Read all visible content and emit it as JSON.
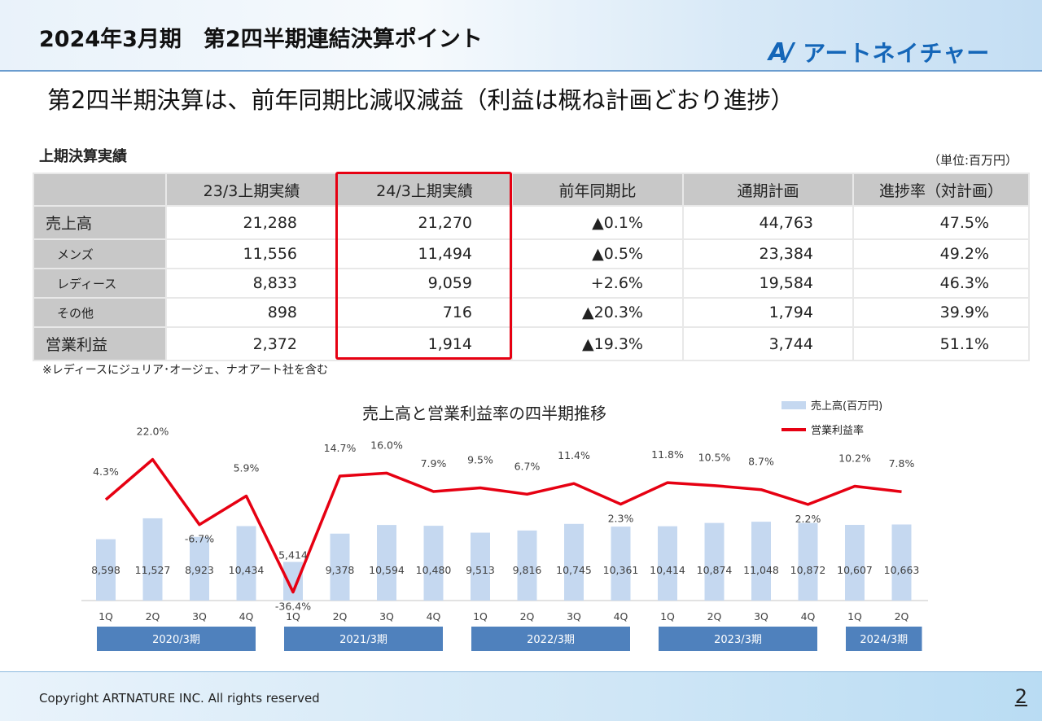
{
  "header": {
    "title": "2024年3月期　第2四半期連結決算ポイント",
    "logo_mark": "AN",
    "logo_text": "アートネイチャー"
  },
  "subtitle": "第2四半期決算は、前年同期比減収減益（利益は概ね計画どおり進捗）",
  "table": {
    "title": "上期決算実績",
    "unit": "（単位:百万円）",
    "headers": [
      "",
      "23/3上期実績",
      "24/3上期実績",
      "前年同期比",
      "通期計画",
      "進捗率（対計画）"
    ],
    "rows": [
      {
        "label": "売上高",
        "values": [
          "21,288",
          "21,270",
          "▲0.1%",
          "44,763",
          "47.5%"
        ]
      },
      {
        "label": "メンズ",
        "values": [
          "11,556",
          "11,494",
          "▲0.5%",
          "23,384",
          "49.2%"
        ]
      },
      {
        "label": "レディース",
        "values": [
          "8,833",
          "9,059",
          "+2.6%",
          "19,584",
          "46.3%"
        ]
      },
      {
        "label": "その他",
        "values": [
          "898",
          "716",
          "▲20.3%",
          "1,794",
          "39.9%"
        ]
      },
      {
        "label": "営業利益",
        "values": [
          "2,372",
          "1,914",
          "▲19.3%",
          "3,744",
          "51.1%"
        ]
      }
    ],
    "highlight_color": "#e60012",
    "note": "※レディースにジュリア･オージェ、ナオアート社を含む"
  },
  "chart_data": {
    "type": "bar+line",
    "title": "売上高と営業利益率の四半期推移",
    "categories": [
      "1Q",
      "2Q",
      "3Q",
      "4Q",
      "1Q",
      "2Q",
      "3Q",
      "4Q",
      "1Q",
      "2Q",
      "3Q",
      "4Q",
      "1Q",
      "2Q",
      "3Q",
      "4Q",
      "1Q",
      "2Q"
    ],
    "groups": [
      {
        "label": "2020/3期",
        "count": 4
      },
      {
        "label": "2021/3期",
        "count": 4
      },
      {
        "label": "2022/3期",
        "count": 4
      },
      {
        "label": "2023/3期",
        "count": 4
      },
      {
        "label": "2024/3期",
        "count": 2
      }
    ],
    "series": [
      {
        "name": "売上高(百万円)",
        "type": "bar",
        "color": "#c5d8f0",
        "values": [
          8598,
          11527,
          8923,
          10434,
          5414,
          9378,
          10594,
          10480,
          9513,
          9816,
          10745,
          10361,
          10414,
          10874,
          11048,
          10872,
          10607,
          10663
        ],
        "labels": [
          "8,598",
          "11,527",
          "8,923",
          "10,434",
          "5,414",
          "9,378",
          "10,594",
          "10,480",
          "9,513",
          "9,816",
          "10,745",
          "10,361",
          "10,414",
          "10,874",
          "11,048",
          "10,872",
          "10,607",
          "10,663"
        ]
      },
      {
        "name": "営業利益率",
        "type": "line",
        "color": "#e60012",
        "values": [
          4.3,
          22.0,
          -6.7,
          5.9,
          -36.4,
          14.7,
          16.0,
          7.9,
          9.5,
          6.7,
          11.4,
          2.3,
          11.8,
          10.5,
          8.7,
          2.2,
          10.2,
          7.8
        ],
        "labels": [
          "4.3%",
          "22.0%",
          "-6.7%",
          "5.9%",
          "-36.4%",
          "14.7%",
          "16.0%",
          "7.9%",
          "9.5%",
          "6.7%",
          "11.4%",
          "2.3%",
          "11.8%",
          "10.5%",
          "8.7%",
          "2.2%",
          "10.2%",
          "7.8%"
        ]
      }
    ],
    "legend": "top-right",
    "grid": false
  },
  "footer": {
    "copyright": "Copyright ARTNATURE INC. All rights reserved",
    "page": "2"
  }
}
